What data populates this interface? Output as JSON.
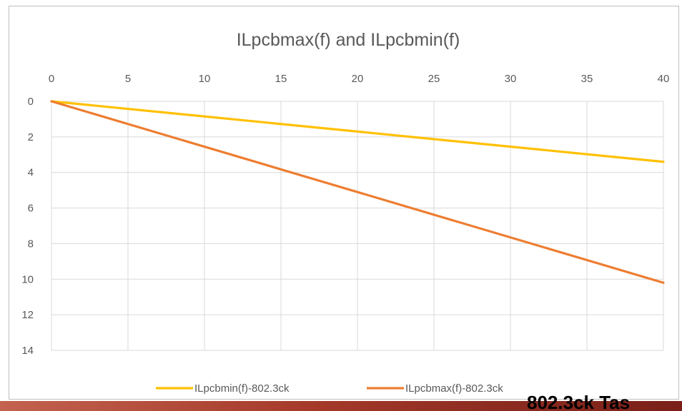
{
  "footer": {
    "caption": "802.3ck Tas"
  },
  "chart_data": {
    "type": "line",
    "title": "ILpcbmax(f) and ILpcbmin(f)",
    "xlabel": "",
    "ylabel": "",
    "x_ticks": [
      "0",
      "5",
      "10",
      "15",
      "20",
      "25",
      "30",
      "35",
      "40"
    ],
    "y_ticks": [
      "0",
      "2",
      "4",
      "6",
      "8",
      "10",
      "12",
      "14"
    ],
    "xlim": [
      0,
      40
    ],
    "ylim": [
      0,
      14
    ],
    "y_inverted": true,
    "x_axis_position": "top",
    "grid": true,
    "legend_position": "bottom",
    "series": [
      {
        "name": "ILpcbmin(f)-802.3ck",
        "color": "#FFC000",
        "x": [
          0,
          40
        ],
        "y": [
          0,
          3.4
        ]
      },
      {
        "name": "ILpcbmax(f)-802.3ck",
        "color": "#ED7D31",
        "x": [
          0,
          40
        ],
        "y": [
          0,
          10.2
        ]
      }
    ]
  }
}
